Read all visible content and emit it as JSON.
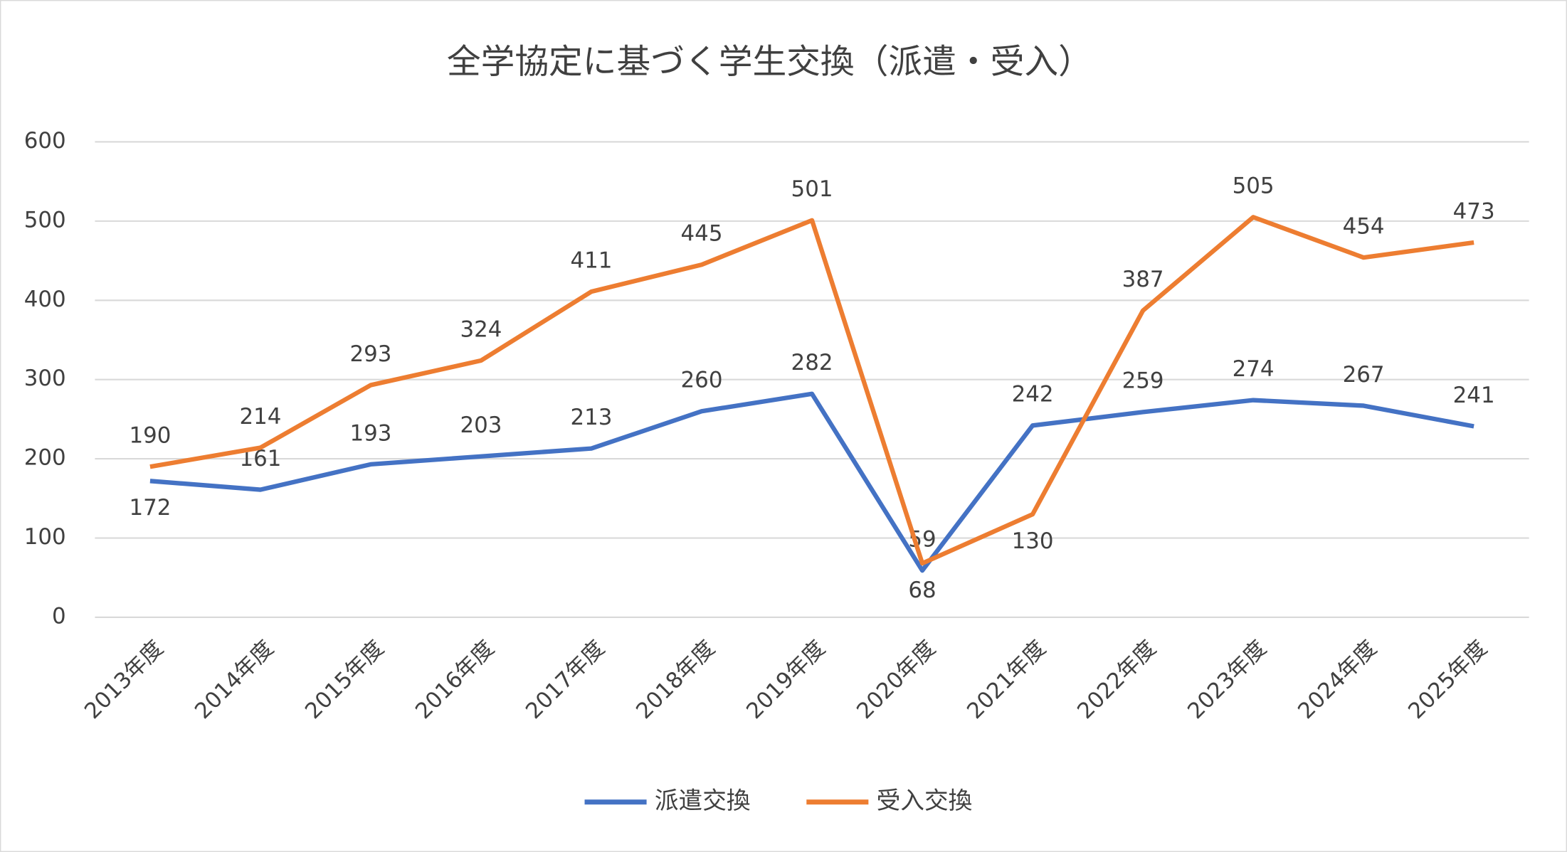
{
  "chart_data": {
    "type": "line",
    "title": "全学協定に基づく学生交換（派遣・受入）",
    "categories": [
      "2013年度",
      "2014年度",
      "2015年度",
      "2016年度",
      "2017年度",
      "2018年度",
      "2019年度",
      "2020年度",
      "2021年度",
      "2022年度",
      "2023年度",
      "2024年度",
      "2025年度"
    ],
    "series": [
      {
        "name": "派遣交換",
        "color": "#4472c4",
        "values": [
          172,
          161,
          193,
          203,
          213,
          260,
          282,
          59,
          242,
          259,
          274,
          267,
          241
        ]
      },
      {
        "name": "受入交換",
        "color": "#ed7d31",
        "values": [
          190,
          214,
          293,
          324,
          411,
          445,
          501,
          68,
          130,
          387,
          505,
          454,
          473
        ]
      }
    ],
    "ylim": [
      0,
      600
    ],
    "yticks": [
      0,
      100,
      200,
      300,
      400,
      500,
      600
    ],
    "grid": true,
    "legend": "bottom"
  }
}
